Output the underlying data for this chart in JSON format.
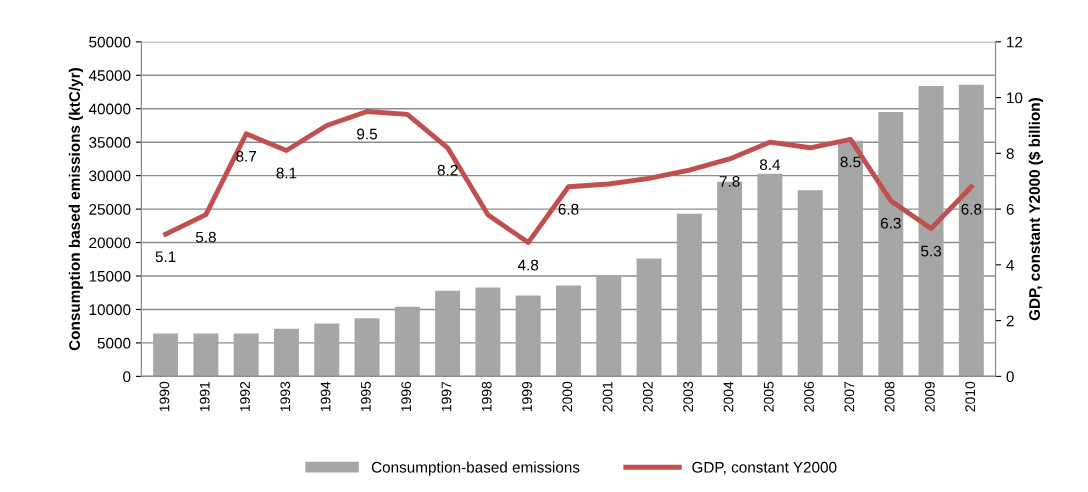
{
  "chart_data": {
    "type": "bar",
    "categories": [
      "1990",
      "1991",
      "1992",
      "1993",
      "1994",
      "1995",
      "1996",
      "1997",
      "1998",
      "1999",
      "2000",
      "2001",
      "2002",
      "2003",
      "2004",
      "2005",
      "2006",
      "2007",
      "2008",
      "2009",
      "2010"
    ],
    "ylabel": "Consumption based emissions (ktC/yr)",
    "y2label": "GDP, constant Y2000 ($ billion)",
    "series": [
      {
        "name": "Consumption-based emissions",
        "color": "#a6a6a6",
        "values": [
          6400,
          6400,
          6400,
          7100,
          7900,
          8700,
          10400,
          12800,
          13300,
          12100,
          13600,
          15100,
          17600,
          24300,
          29100,
          30300,
          27800,
          35200,
          39500,
          43400,
          43600
        ]
      },
      {
        "name": "GDP, constant Y2000",
        "type": "line",
        "axis": "y2",
        "color": "#c0504d",
        "values": [
          5.1,
          5.8,
          8.7,
          8.1,
          9.0,
          9.5,
          9.4,
          8.2,
          5.8,
          4.8,
          6.8,
          6.9,
          7.1,
          7.4,
          7.8,
          8.4,
          8.2,
          8.5,
          6.3,
          5.3,
          6.8
        ],
        "value_labels": [
          "5.1",
          "5.8",
          "8.7",
          "8.1",
          null,
          "9.5",
          null,
          "8.2",
          null,
          "4.8",
          "6.8",
          null,
          null,
          null,
          "7.8",
          "8.4",
          null,
          "8.5",
          "6.3",
          "5.3",
          "6.8"
        ]
      }
    ],
    "ylim": [
      0,
      50000
    ],
    "yticks": [
      0,
      5000,
      10000,
      15000,
      20000,
      25000,
      30000,
      35000,
      40000,
      45000,
      50000
    ],
    "y2lim": [
      0,
      12
    ],
    "y2ticks": [
      0,
      2,
      4,
      6,
      8,
      10,
      12
    ],
    "grid": "y",
    "legend": "bottom"
  }
}
